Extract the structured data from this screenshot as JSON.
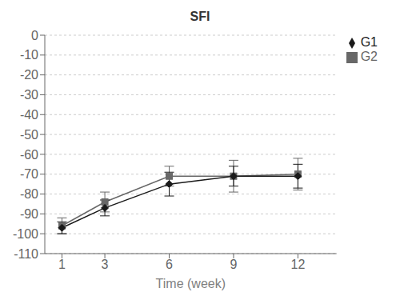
{
  "chart_data": {
    "type": "line",
    "title": "SFI",
    "xlabel": "Time (week)",
    "x": [
      1,
      3,
      6,
      9,
      12
    ],
    "series": [
      {
        "name": "G2",
        "color": "#686868",
        "marker": "square",
        "values": [
          -96,
          -84,
          -71,
          -71,
          -70
        ],
        "errors": [
          4,
          5,
          5,
          8,
          8
        ]
      },
      {
        "name": "G1",
        "color": "#1a1a1a",
        "marker": "diamond",
        "values": [
          -97,
          -87,
          -75,
          -71,
          -71
        ],
        "errors": [
          3,
          4,
          6,
          5,
          6
        ]
      }
    ],
    "xlim": [
      0.2,
      13.8
    ],
    "xticks": [
      1,
      3,
      6,
      9,
      12
    ],
    "ylim": [
      -110,
      0
    ],
    "yticks": [
      0,
      -10,
      -20,
      -30,
      -40,
      -50,
      -60,
      -70,
      -80,
      -90,
      -100,
      -110
    ],
    "grid": true,
    "legend": "right"
  }
}
